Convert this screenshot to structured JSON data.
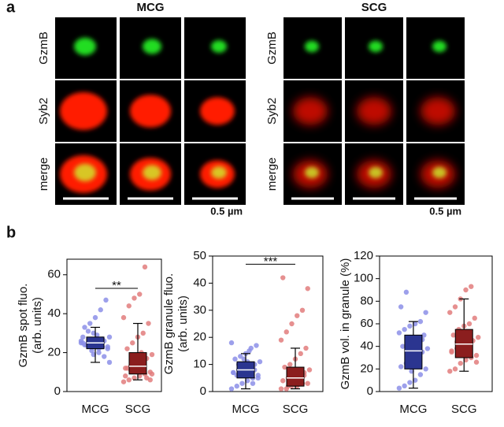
{
  "panel_a": {
    "label": "a",
    "groups": [
      {
        "title": "MCG",
        "rows": [
          "GzmB",
          "Syb2",
          "merge"
        ],
        "scale": "0.5 µm"
      },
      {
        "title": "SCG",
        "rows": [
          "GzmB",
          "Syb2",
          "merge"
        ],
        "scale": "0.5 µm"
      }
    ]
  },
  "panel_b": {
    "label": "b"
  },
  "chart_data": [
    {
      "type": "box",
      "ylabel": [
        "GzmB spot fluo.",
        "(arb. units)"
      ],
      "categories": [
        "MCG",
        "SCG"
      ],
      "ylim": [
        0,
        68
      ],
      "yticks": [
        0,
        20,
        40,
        60
      ],
      "annotation": {
        "text": "**",
        "y": 53
      },
      "groups": [
        {
          "color": "#2b3590",
          "point_color": "#8c8fe8",
          "stats": {
            "whisker_low": 15,
            "q1": 22,
            "median": 25,
            "q3": 28,
            "whisker_high": 33
          },
          "points": [
            25,
            24,
            26,
            27,
            23,
            22,
            28,
            25,
            30,
            20,
            18,
            15,
            33,
            35,
            38,
            42,
            47,
            26,
            24,
            21,
            29,
            27,
            23,
            25,
            31,
            19,
            22,
            26,
            28,
            24
          ]
        },
        {
          "color": "#8b1e1e",
          "point_color": "#e27d7d",
          "stats": {
            "whisker_low": 6,
            "q1": 9,
            "median": 13,
            "q3": 20,
            "whisker_high": 35
          },
          "points": [
            5,
            6,
            7,
            8,
            9,
            10,
            12,
            13,
            14,
            15,
            17,
            19,
            22,
            25,
            28,
            30,
            35,
            38,
            44,
            48,
            50,
            64,
            6,
            8,
            11,
            16,
            20,
            7,
            9,
            12
          ]
        }
      ]
    },
    {
      "type": "box",
      "ylabel": [
        "GzmB granule fluo.",
        "(arb. units)"
      ],
      "categories": [
        "MCG",
        "SCG"
      ],
      "ylim": [
        0,
        50
      ],
      "yticks": [
        0,
        10,
        20,
        30,
        40,
        50
      ],
      "annotation": {
        "text": "***",
        "y": 47
      },
      "groups": [
        {
          "color": "#2b3590",
          "point_color": "#8c8fe8",
          "stats": {
            "whisker_low": 1,
            "q1": 5,
            "median": 8,
            "q3": 11,
            "whisker_high": 14
          },
          "points": [
            1,
            2,
            3,
            4,
            5,
            6,
            7,
            8,
            8,
            9,
            10,
            11,
            12,
            13,
            14,
            16,
            17,
            18,
            6,
            9,
            11,
            3,
            5,
            7,
            10,
            12,
            15,
            8
          ]
        },
        {
          "color": "#8b1e1e",
          "point_color": "#e27d7d",
          "stats": {
            "whisker_low": 1,
            "q1": 2,
            "median": 5,
            "q3": 9,
            "whisker_high": 16
          },
          "points": [
            1,
            1,
            2,
            2,
            3,
            3,
            4,
            5,
            5,
            6,
            7,
            8,
            9,
            10,
            12,
            14,
            16,
            19,
            22,
            25,
            28,
            30,
            38,
            42,
            2,
            3,
            4,
            6
          ]
        }
      ]
    },
    {
      "type": "box",
      "ylabel": [
        "GzmB vol. in granule (%)"
      ],
      "categories": [
        "MCG",
        "SCG"
      ],
      "ylim": [
        0,
        120
      ],
      "yticks": [
        0,
        20,
        40,
        60,
        80,
        100,
        120
      ],
      "groups": [
        {
          "color": "#2b3590",
          "point_color": "#8c8fe8",
          "stats": {
            "whisker_low": 3,
            "q1": 20,
            "median": 36,
            "q3": 50,
            "whisker_high": 62
          },
          "points": [
            3,
            5,
            8,
            10,
            15,
            20,
            22,
            25,
            28,
            30,
            35,
            38,
            40,
            42,
            45,
            48,
            50,
            52,
            55,
            58,
            60,
            62,
            70,
            75,
            88,
            18,
            33,
            46
          ]
        },
        {
          "color": "#8b1e1e",
          "point_color": "#e27d7d",
          "stats": {
            "whisker_low": 18,
            "q1": 30,
            "median": 42,
            "q3": 55,
            "whisker_high": 82
          },
          "points": [
            18,
            20,
            25,
            28,
            30,
            32,
            35,
            38,
            40,
            42,
            45,
            48,
            50,
            55,
            58,
            60,
            65,
            70,
            75,
            82,
            90,
            93,
            26,
            36,
            44
          ]
        }
      ]
    }
  ]
}
